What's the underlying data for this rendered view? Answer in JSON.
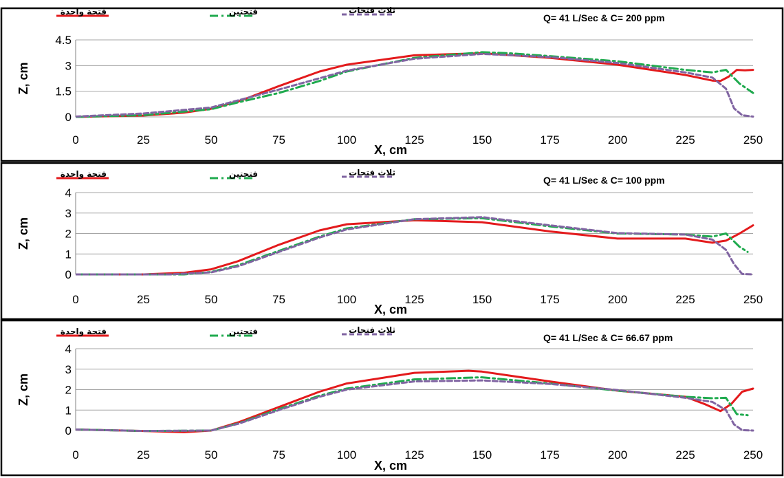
{
  "chart_data": [
    {
      "type": "line",
      "title": "Q= 41 L/Sec & C= 200 ppm",
      "xlabel": "X,  cm",
      "ylabel": "Z,  cm",
      "xlim": [
        0,
        250
      ],
      "ylim": [
        0,
        4.5
      ],
      "xticks": [
        "0",
        "25",
        "50",
        "75",
        "100",
        "125",
        "150",
        "175",
        "200",
        "225",
        "250"
      ],
      "yticks": [
        "0",
        "1.5",
        "3",
        "4.5"
      ],
      "grid": "horizontal",
      "legend_position": "top",
      "series": [
        {
          "name": "فتحة واحدة",
          "color": "#e31a1c",
          "dash": "solid",
          "x": [
            0,
            25,
            40,
            50,
            60,
            75,
            90,
            100,
            125,
            150,
            175,
            200,
            225,
            235,
            238,
            241,
            244,
            247,
            250
          ],
          "y": [
            0,
            0.08,
            0.25,
            0.48,
            0.9,
            1.8,
            2.65,
            3.05,
            3.6,
            3.72,
            3.45,
            3.05,
            2.45,
            2.12,
            2.1,
            2.35,
            2.75,
            2.72,
            2.75
          ]
        },
        {
          "name": "فتحتين",
          "color": "#1faa4e",
          "dash": "dashdot",
          "x": [
            0,
            25,
            50,
            60,
            75,
            90,
            100,
            125,
            150,
            160,
            175,
            200,
            225,
            235,
            240,
            245,
            250
          ],
          "y": [
            0,
            0.1,
            0.45,
            0.85,
            1.4,
            2.1,
            2.65,
            3.45,
            3.78,
            3.72,
            3.55,
            3.25,
            2.75,
            2.6,
            2.75,
            1.95,
            1.4
          ]
        },
        {
          "name": "ثلاث فتحات",
          "color": "#8064a2",
          "dash": "dash",
          "x": [
            0,
            25,
            50,
            75,
            100,
            125,
            150,
            175,
            200,
            225,
            235,
            240,
            243,
            246,
            250
          ],
          "y": [
            0.02,
            0.2,
            0.55,
            1.6,
            2.7,
            3.4,
            3.68,
            3.5,
            3.15,
            2.6,
            2.3,
            1.65,
            0.5,
            0.1,
            0.02
          ]
        }
      ]
    },
    {
      "type": "line",
      "title": "Q= 41 L/Sec & C= 100 ppm",
      "xlabel": "X,  cm",
      "ylabel": "Z,  cm",
      "xlim": [
        0,
        250
      ],
      "ylim": [
        0,
        4
      ],
      "xticks": [
        "0",
        "25",
        "50",
        "75",
        "100",
        "125",
        "150",
        "175",
        "200",
        "225",
        "250"
      ],
      "yticks": [
        "0",
        "1",
        "2",
        "3",
        "4"
      ],
      "grid": "horizontal",
      "legend_position": "top",
      "series": [
        {
          "name": "فتحة واحدة",
          "color": "#e31a1c",
          "dash": "solid",
          "x": [
            0,
            25,
            40,
            50,
            60,
            75,
            90,
            100,
            125,
            150,
            175,
            200,
            225,
            235,
            240,
            245,
            250
          ],
          "y": [
            0,
            0,
            0.08,
            0.25,
            0.65,
            1.45,
            2.15,
            2.45,
            2.65,
            2.55,
            2.1,
            1.75,
            1.75,
            1.55,
            1.65,
            2.0,
            2.4
          ]
        },
        {
          "name": "فتحتين",
          "color": "#1faa4e",
          "dash": "dashdot",
          "x": [
            0,
            25,
            40,
            50,
            60,
            75,
            90,
            100,
            125,
            150,
            175,
            200,
            225,
            235,
            240,
            245,
            248
          ],
          "y": [
            0,
            0,
            0,
            0.12,
            0.45,
            1.15,
            1.85,
            2.25,
            2.7,
            2.75,
            2.35,
            2.0,
            1.95,
            1.85,
            2.0,
            1.35,
            1.1
          ]
        },
        {
          "name": "ثلاث فتحات",
          "color": "#8064a2",
          "dash": "dash",
          "x": [
            0,
            25,
            35,
            50,
            60,
            75,
            90,
            100,
            125,
            150,
            175,
            200,
            225,
            235,
            240,
            243,
            246,
            250
          ],
          "y": [
            0,
            0,
            0,
            0.1,
            0.4,
            1.1,
            1.8,
            2.2,
            2.7,
            2.8,
            2.4,
            2.02,
            1.95,
            1.7,
            1.2,
            0.5,
            0.02,
            0
          ]
        }
      ]
    },
    {
      "type": "line",
      "title": "Q= 41 L/Sec & C= 66.67 ppm",
      "xlabel": "X,  cm",
      "ylabel": "Z,  cm",
      "xlim": [
        0,
        250
      ],
      "ylim": [
        0,
        4
      ],
      "xticks": [
        "0",
        "25",
        "50",
        "75",
        "100",
        "125",
        "150",
        "175",
        "200",
        "225",
        "250"
      ],
      "yticks": [
        "0",
        "1",
        "2",
        "3",
        "4"
      ],
      "grid": "horizontal",
      "legend_position": "top",
      "series": [
        {
          "name": "فتحة واحدة",
          "color": "#e31a1c",
          "dash": "solid",
          "x": [
            0,
            25,
            40,
            50,
            60,
            75,
            90,
            100,
            125,
            145,
            150,
            175,
            200,
            225,
            232,
            238,
            242,
            246,
            250
          ],
          "y": [
            0.05,
            -0.02,
            -0.08,
            0,
            0.4,
            1.15,
            1.9,
            2.3,
            2.82,
            2.92,
            2.88,
            2.4,
            1.95,
            1.65,
            1.3,
            0.95,
            1.3,
            1.9,
            2.05
          ]
        },
        {
          "name": "فتحتين",
          "color": "#1faa4e",
          "dash": "dashdot",
          "x": [
            0,
            25,
            50,
            60,
            75,
            90,
            100,
            125,
            150,
            175,
            200,
            225,
            235,
            240,
            244,
            248
          ],
          "y": [
            0.05,
            -0.02,
            0,
            0.35,
            1.05,
            1.7,
            2.05,
            2.5,
            2.6,
            2.3,
            1.95,
            1.65,
            1.58,
            1.6,
            0.8,
            0.75
          ]
        },
        {
          "name": "ثلاث فتحات",
          "color": "#8064a2",
          "dash": "dash",
          "x": [
            0,
            25,
            50,
            60,
            75,
            90,
            100,
            125,
            150,
            175,
            200,
            225,
            235,
            240,
            243,
            246,
            250
          ],
          "y": [
            0.05,
            -0.02,
            0,
            0.33,
            1.0,
            1.65,
            2.0,
            2.4,
            2.45,
            2.28,
            1.98,
            1.6,
            1.4,
            1.0,
            0.3,
            0.02,
            0
          ]
        }
      ]
    }
  ]
}
